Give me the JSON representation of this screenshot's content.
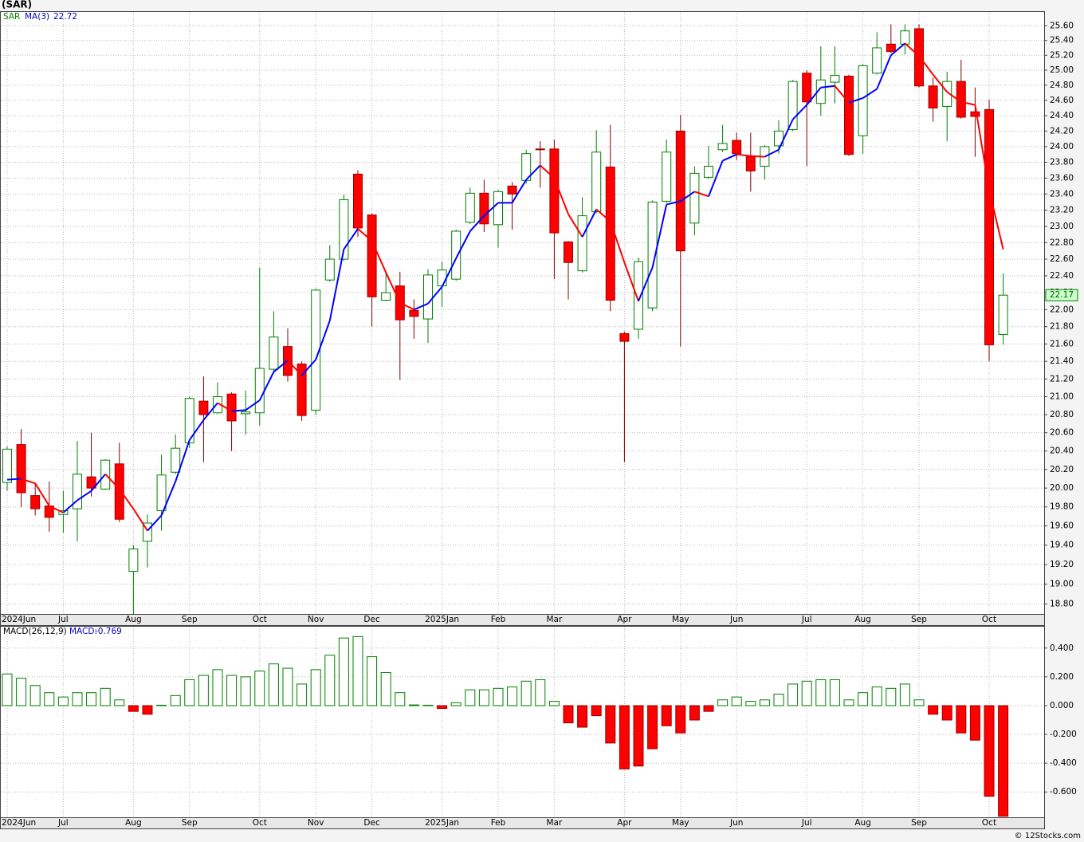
{
  "title": "(SAR)",
  "footer": "© 12Stocks.com",
  "chart_data": [
    {
      "type": "candlestick",
      "symbol": "SAR",
      "ma_name": "MA(3)",
      "log_scale": true,
      "grid": true,
      "up_color": "#008000",
      "down_color": "#ff0000",
      "ma_up_color": "#0000ff",
      "ma_down_color": "#ff0000",
      "xlim": [
        -0.51,
        73.92
      ],
      "xticks": [
        {
          "value": 0,
          "label": "2024Jun"
        },
        {
          "value": 4,
          "label": "Jul"
        },
        {
          "value": 9,
          "label": "Aug"
        },
        {
          "value": 13,
          "label": "Sep"
        },
        {
          "value": 18,
          "label": "Oct"
        },
        {
          "value": 22,
          "label": "Nov"
        },
        {
          "value": 26,
          "label": "Dec"
        },
        {
          "value": 31,
          "label": "2025Jan"
        },
        {
          "value": 35,
          "label": "Feb"
        },
        {
          "value": 39,
          "label": "Mar"
        },
        {
          "value": 44,
          "label": "Apr"
        },
        {
          "value": 48,
          "label": "May"
        },
        {
          "value": 52,
          "label": "Jun"
        },
        {
          "value": 57,
          "label": "Jul"
        },
        {
          "value": 61,
          "label": "Aug"
        },
        {
          "value": 65,
          "label": "Sep"
        },
        {
          "value": 70,
          "label": "Oct"
        }
      ],
      "ylim": [
        18.7,
        25.8
      ],
      "yticks": [
        {
          "value": 25.6,
          "label": "25.60"
        },
        {
          "value": 25.4,
          "label": "25.40"
        },
        {
          "value": 25.2,
          "label": "25.20"
        },
        {
          "value": 25,
          "label": "25.00"
        },
        {
          "value": 24.8,
          "label": "24.80"
        },
        {
          "value": 24.6,
          "label": "24.60"
        },
        {
          "value": 24.4,
          "label": "24.40"
        },
        {
          "value": 24.2,
          "label": "24.20"
        },
        {
          "value": 24,
          "label": "24.00"
        },
        {
          "value": 23.8,
          "label": "23.80"
        },
        {
          "value": 23.6,
          "label": "23.60"
        },
        {
          "value": 23.4,
          "label": "23.40"
        },
        {
          "value": 23.2,
          "label": "23.20"
        },
        {
          "value": 23,
          "label": "23.00"
        },
        {
          "value": 22.8,
          "label": "22.80"
        },
        {
          "value": 22.6,
          "label": "22.60"
        },
        {
          "value": 22.4,
          "label": "22.40"
        },
        {
          "value": 22.2,
          "label": "22.20"
        },
        {
          "value": 22,
          "label": "22.00"
        },
        {
          "value": 21.8,
          "label": "21.80"
        },
        {
          "value": 21.6,
          "label": "21.60"
        },
        {
          "value": 21.4,
          "label": "21.40"
        },
        {
          "value": 21.2,
          "label": "21.20"
        },
        {
          "value": 21,
          "label": "21.00"
        },
        {
          "value": 20.8,
          "label": "20.80"
        },
        {
          "value": 20.6,
          "label": "20.60"
        },
        {
          "value": 20.4,
          "label": "20.40"
        },
        {
          "value": 20.2,
          "label": "20.20"
        },
        {
          "value": 20,
          "label": "20.00"
        },
        {
          "value": 19.8,
          "label": "19.80"
        },
        {
          "value": 19.6,
          "label": "19.60"
        },
        {
          "value": 19.4,
          "label": "19.40"
        },
        {
          "value": 19.2,
          "label": "19.20"
        },
        {
          "value": 19,
          "label": "19.00"
        },
        {
          "value": 18.8,
          "label": "18.80"
        }
      ],
      "open": [
        20.06,
        20.47,
        19.92,
        19.81,
        19.72,
        19.78,
        20.12,
        19.99,
        20.26,
        19.13,
        19.44,
        19.76,
        20.17,
        20.49,
        20.95,
        20.82,
        21.03,
        20.81,
        20.82,
        21.31,
        21.57,
        21.37,
        20.85,
        22.35,
        22.6,
        23.65,
        23.14,
        22.11,
        22.28,
        21.99,
        21.89,
        22.28,
        22.36,
        23.05,
        23.41,
        23.02,
        23.5,
        23.57,
        23.97,
        23.97,
        22.81,
        22.46,
        23.18,
        23.74,
        21.72,
        21.77,
        22.02,
        23.31,
        24.2,
        23.04,
        23.61,
        23.96,
        24.08,
        23.87,
        23.75,
        24.01,
        24.22,
        24.96,
        24.56,
        24.84,
        24.92,
        24.14,
        24.96,
        25.35,
        25.35,
        25.56,
        24.79,
        24.52,
        24.85,
        24.45,
        24.48,
        21.71
      ],
      "high": [
        20.45,
        20.64,
        20.06,
        20.07,
        19.97,
        20.51,
        20.6,
        20.31,
        20.49,
        19.4,
        19.72,
        20.36,
        20.58,
        21.0,
        21.23,
        21.16,
        21.05,
        21.07,
        22.5,
        21.98,
        21.78,
        21.4,
        22.25,
        22.77,
        23.39,
        23.7,
        23.16,
        22.43,
        22.45,
        22.12,
        22.48,
        22.57,
        22.96,
        23.48,
        23.58,
        23.45,
        23.55,
        23.96,
        24.07,
        24.09,
        22.82,
        23.36,
        24.21,
        24.28,
        21.74,
        22.62,
        23.32,
        24.09,
        24.41,
        23.75,
        24.01,
        24.28,
        24.18,
        24.18,
        24.02,
        24.34,
        24.87,
        25.0,
        25.32,
        25.32,
        24.94,
        25.08,
        25.51,
        25.62,
        25.62,
        25.62,
        24.9,
        24.98,
        25.14,
        24.77,
        24.61,
        22.43
      ],
      "low": [
        19.97,
        19.8,
        19.71,
        19.54,
        19.53,
        19.44,
        19.91,
        19.98,
        19.64,
        18.7,
        19.17,
        19.55,
        20.15,
        20.43,
        20.28,
        20.81,
        20.4,
        20.58,
        20.68,
        21.26,
        21.17,
        20.73,
        20.8,
        22.33,
        22.58,
        22.87,
        21.8,
        22.1,
        21.19,
        21.66,
        21.61,
        22.03,
        22.34,
        23.03,
        22.93,
        22.74,
        22.96,
        23.53,
        23.48,
        22.36,
        22.12,
        22.44,
        23.16,
        21.98,
        20.28,
        21.66,
        21.98,
        23.29,
        21.57,
        22.89,
        23.59,
        23.93,
        23.83,
        23.43,
        23.58,
        23.91,
        24.2,
        23.75,
        24.4,
        24.56,
        23.88,
        23.91,
        24.94,
        25.23,
        25.21,
        24.77,
        24.32,
        24.07,
        24.36,
        23.87,
        21.4,
        21.59
      ],
      "close": [
        20.42,
        19.95,
        19.78,
        19.69,
        19.76,
        20.15,
        20.0,
        20.3,
        19.67,
        19.36,
        19.63,
        20.14,
        20.43,
        20.98,
        20.8,
        21.0,
        20.73,
        20.83,
        21.32,
        21.68,
        21.24,
        20.79,
        22.23,
        22.6,
        23.33,
        22.98,
        22.15,
        22.2,
        21.88,
        21.92,
        22.41,
        22.47,
        22.94,
        23.41,
        23.03,
        23.43,
        23.4,
        23.91,
        23.96,
        22.92,
        22.56,
        23.13,
        23.93,
        22.11,
        21.63,
        22.57,
        23.3,
        23.93,
        22.7,
        23.66,
        23.75,
        24.04,
        23.91,
        23.69,
        24.0,
        24.2,
        24.85,
        24.58,
        24.87,
        24.93,
        23.9,
        25.06,
        25.3,
        25.25,
        25.53,
        24.79,
        24.5,
        24.85,
        24.38,
        24.39,
        21.59,
        22.17
      ],
      "ma": [
        20.09,
        20.1,
        20.05,
        19.81,
        19.74,
        19.87,
        19.97,
        20.15,
        19.99,
        19.78,
        19.55,
        19.71,
        20.07,
        20.52,
        20.74,
        20.93,
        20.84,
        20.85,
        20.96,
        21.28,
        21.41,
        21.24,
        21.42,
        21.87,
        22.72,
        22.97,
        22.82,
        22.44,
        22.08,
        22.0,
        22.07,
        22.27,
        22.61,
        22.94,
        23.13,
        23.29,
        23.29,
        23.58,
        23.76,
        23.6,
        23.15,
        22.87,
        23.21,
        23.06,
        22.56,
        22.1,
        22.5,
        23.27,
        23.31,
        23.43,
        23.37,
        23.82,
        23.9,
        23.88,
        23.87,
        23.96,
        24.35,
        24.54,
        24.77,
        24.79,
        24.57,
        24.63,
        24.75,
        25.2,
        25.36,
        25.19,
        24.94,
        24.71,
        24.58,
        24.54,
        23.45,
        22.72
      ]
    },
    {
      "type": "bar",
      "name": "MACD(26,12,9)",
      "value_name": "MACD:",
      "up_color": "#008000",
      "down_color": "#ff0000",
      "grid": true,
      "ylim": [
        -0.776,
        0.554
      ],
      "yticks": [
        {
          "value": 0.4,
          "label": "0.400"
        },
        {
          "value": 0.2,
          "label": "0.200"
        },
        {
          "value": 0,
          "label": "0.000"
        },
        {
          "value": -0.2,
          "label": "-0.200"
        },
        {
          "value": -0.4,
          "label": "-0.400"
        },
        {
          "value": -0.6,
          "label": "-0.600"
        }
      ],
      "values": [
        0.22,
        0.19,
        0.14,
        0.09,
        0.06,
        0.09,
        0.09,
        0.12,
        0.04,
        -0.04,
        -0.06,
        0.003,
        0.07,
        0.18,
        0.21,
        0.25,
        0.21,
        0.2,
        0.24,
        0.29,
        0.26,
        0.15,
        0.25,
        0.35,
        0.47,
        0.48,
        0.34,
        0.23,
        0.09,
        0.005,
        0.003,
        -0.02,
        0.02,
        0.11,
        0.11,
        0.12,
        0.13,
        0.17,
        0.18,
        0.03,
        -0.12,
        -0.15,
        -0.07,
        -0.26,
        -0.44,
        -0.42,
        -0.3,
        -0.14,
        -0.19,
        -0.1,
        -0.04,
        0.04,
        0.06,
        0.03,
        0.04,
        0.08,
        0.15,
        0.17,
        0.18,
        0.18,
        0.04,
        0.09,
        0.13,
        0.12,
        0.15,
        0.04,
        -0.06,
        -0.1,
        -0.19,
        -0.24,
        -0.63,
        -0.769
      ]
    }
  ]
}
